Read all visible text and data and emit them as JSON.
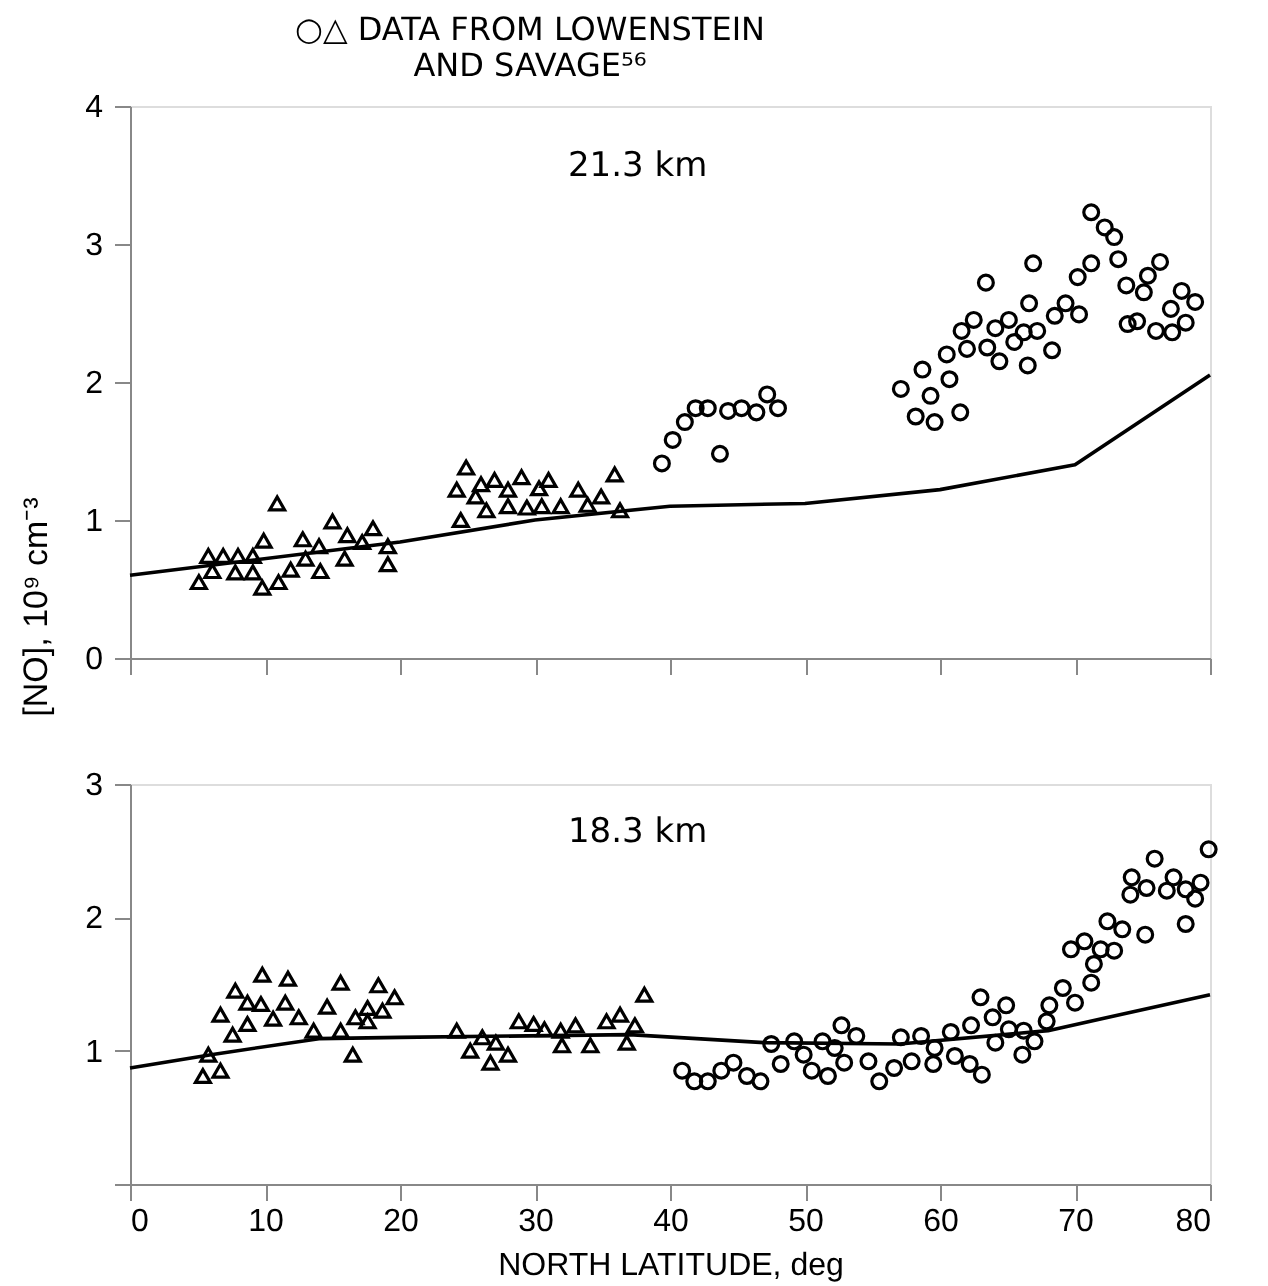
{
  "chart_data": [
    {
      "type": "scatter",
      "title": "○△ DATA FROM LOWENSTEIN\nAND SAVAGE⁵⁶",
      "ylabel": "[NO], 10⁹ cm⁻³",
      "annotations": [
        "21.3 km"
      ],
      "xlim": [
        0,
        80
      ],
      "xticks": [
        0,
        10,
        20,
        30,
        40,
        50,
        60,
        70,
        80
      ],
      "ylim": [
        0,
        4
      ],
      "yticks": [
        0,
        1,
        2,
        3,
        4
      ],
      "tick_labels": "y",
      "grid": false,
      "series": [
        {
          "type": "scatter",
          "marker": "triangle",
          "color": "#000000",
          "x": [
            5.8,
            6.9,
            8.0,
            9.1,
            5.1,
            6.1,
            7.8,
            9.1,
            9.8,
            11.0,
            10.9,
            9.9,
            11.9,
            12.8,
            13.0,
            14.0,
            14.1,
            15.0,
            16.1,
            15.9,
            17.2,
            18.0,
            19.1,
            19.1,
            24.9,
            24.2,
            24.5,
            26.0,
            27.0,
            26.4,
            28.0,
            29.0,
            29.4,
            30.3,
            31.0,
            31.9,
            33.2,
            33.9,
            34.9,
            35.9,
            36.3,
            25.6,
            28.0,
            30.5
          ],
          "values": [
            0.74,
            0.74,
            0.74,
            0.74,
            0.55,
            0.63,
            0.62,
            0.62,
            0.51,
            0.55,
            1.12,
            0.85,
            0.64,
            0.86,
            0.72,
            0.81,
            0.63,
            0.99,
            0.89,
            0.72,
            0.84,
            0.94,
            0.81,
            0.68,
            1.38,
            1.22,
            1.0,
            1.26,
            1.29,
            1.07,
            1.22,
            1.31,
            1.09,
            1.23,
            1.29,
            1.1,
            1.22,
            1.11,
            1.17,
            1.33,
            1.07,
            1.17,
            1.1,
            1.1
          ]
        },
        {
          "type": "scatter",
          "marker": "circle",
          "color": "#000000",
          "x": [
            39.4,
            40.2,
            41.1,
            41.9,
            42.8,
            43.7,
            44.3,
            45.3,
            46.4,
            47.2,
            48.0,
            57.1,
            58.7,
            58.2,
            59.3,
            59.6,
            60.5,
            60.7,
            61.5,
            61.6,
            62.0,
            62.5,
            63.4,
            63.5,
            64.1,
            64.4,
            65.1,
            65.5,
            66.2,
            66.6,
            66.9,
            66.5,
            67.2,
            68.3,
            68.5,
            69.3,
            70.3,
            70.2,
            71.2,
            71.2,
            72.2,
            72.9,
            73.2,
            73.8,
            73.9,
            74.6,
            75.1,
            75.4,
            76.3,
            76.0,
            77.1,
            77.2,
            77.9,
            78.2,
            78.9
          ],
          "values": [
            1.41,
            1.58,
            1.71,
            1.81,
            1.81,
            1.48,
            1.79,
            1.81,
            1.78,
            1.91,
            1.81,
            1.95,
            2.09,
            1.75,
            1.9,
            1.71,
            2.2,
            2.02,
            1.78,
            2.37,
            2.24,
            2.45,
            2.72,
            2.25,
            2.39,
            2.15,
            2.45,
            2.29,
            2.36,
            2.57,
            2.86,
            2.12,
            2.37,
            2.23,
            2.48,
            2.57,
            2.49,
            2.76,
            3.23,
            2.86,
            3.12,
            3.05,
            2.89,
            2.7,
            2.42,
            2.44,
            2.65,
            2.77,
            2.87,
            2.37,
            2.53,
            2.36,
            2.66,
            2.43,
            2.58
          ]
        },
        {
          "type": "line",
          "marker": "none",
          "line_style": "solid",
          "color": "#000000",
          "x": [
            0,
            20,
            30,
            40,
            50,
            60,
            70,
            80
          ],
          "values": [
            0.6,
            0.84,
            1.0,
            1.1,
            1.12,
            1.22,
            1.4,
            2.05
          ]
        }
      ]
    },
    {
      "type": "scatter",
      "annotations": [
        "18.3 km"
      ],
      "xlabel": "NORTH LATITUDE, deg",
      "xlim": [
        0,
        80
      ],
      "xticks": [
        0,
        10,
        20,
        30,
        40,
        50,
        60,
        70,
        80
      ],
      "ylim": [
        0,
        3
      ],
      "yticks": [
        {
          "value": 0,
          "label": null
        },
        1,
        2,
        3
      ],
      "grid": false,
      "series": [
        {
          "type": "scatter",
          "marker": "triangle",
          "color": "#000000",
          "x": [
            5.8,
            5.4,
            6.7,
            6.7,
            7.8,
            7.6,
            8.7,
            8.7,
            9.8,
            9.7,
            10.6,
            11.7,
            11.5,
            12.5,
            13.6,
            14.6,
            15.6,
            15.6,
            16.5,
            16.7,
            17.6,
            17.6,
            18.4,
            18.7,
            19.6,
            24.2,
            25.2,
            26.1,
            26.7,
            27.1,
            28.0,
            28.8,
            29.9,
            30.7,
            31.9,
            32.0,
            33.0,
            34.1,
            35.3,
            36.3,
            36.8,
            37.4,
            38.1
          ],
          "values": [
            0.97,
            0.81,
            0.85,
            1.27,
            1.45,
            1.12,
            1.36,
            1.2,
            1.57,
            1.35,
            1.24,
            1.54,
            1.36,
            1.25,
            1.15,
            1.33,
            1.51,
            1.15,
            0.97,
            1.25,
            1.22,
            1.32,
            1.49,
            1.3,
            1.4,
            1.15,
            1.0,
            1.1,
            0.91,
            1.06,
            0.97,
            1.22,
            1.2,
            1.16,
            1.15,
            1.04,
            1.19,
            1.04,
            1.22,
            1.27,
            1.06,
            1.19,
            1.42
          ]
        },
        {
          "type": "scatter",
          "marker": "circle",
          "color": "#000000",
          "x": [
            40.9,
            41.8,
            42.8,
            43.8,
            44.7,
            45.7,
            46.7,
            47.5,
            48.2,
            49.2,
            49.9,
            50.5,
            51.3,
            51.7,
            52.2,
            52.7,
            52.9,
            53.8,
            54.7,
            55.5,
            56.6,
            57.1,
            57.9,
            58.6,
            59.5,
            59.6,
            60.8,
            61.1,
            62.2,
            62.3,
            63.1,
            63.0,
            63.9,
            64.1,
            64.9,
            65.1,
            66.2,
            66.1,
            67.0,
            67.9,
            68.1,
            69.1,
            70.0,
            71.2,
            71.4,
            69.7,
            70.7,
            71.9,
            72.4,
            72.9,
            73.5,
            75.2,
            74.2,
            74.1,
            75.3,
            75.9,
            76.8,
            77.3,
            78.2,
            78.2,
            78.9,
            79.3,
            79.9
          ],
          "values": [
            0.85,
            0.77,
            0.77,
            0.85,
            0.91,
            0.81,
            0.77,
            1.05,
            0.9,
            1.07,
            0.97,
            0.85,
            1.07,
            0.81,
            1.02,
            1.19,
            0.91,
            1.11,
            0.92,
            0.77,
            0.87,
            1.1,
            0.92,
            1.11,
            0.9,
            1.02,
            1.14,
            0.96,
            0.9,
            1.19,
            0.82,
            1.4,
            1.25,
            1.06,
            1.34,
            1.16,
            1.15,
            0.97,
            1.07,
            1.22,
            1.34,
            1.47,
            1.36,
            1.51,
            1.65,
            1.76,
            1.82,
            1.76,
            1.97,
            1.75,
            1.91,
            1.87,
            2.3,
            2.17,
            2.22,
            2.44,
            2.2,
            2.3,
            2.21,
            1.95,
            2.14,
            2.26,
            2.51
          ]
        },
        {
          "type": "line",
          "marker": "none",
          "line_style": "solid",
          "color": "#000000",
          "x": [
            0,
            6,
            14,
            20,
            37,
            47,
            57,
            68,
            80
          ],
          "values": [
            0.87,
            0.97,
            1.09,
            1.1,
            1.12,
            1.06,
            1.05,
            1.15,
            1.42
          ]
        }
      ]
    }
  ]
}
